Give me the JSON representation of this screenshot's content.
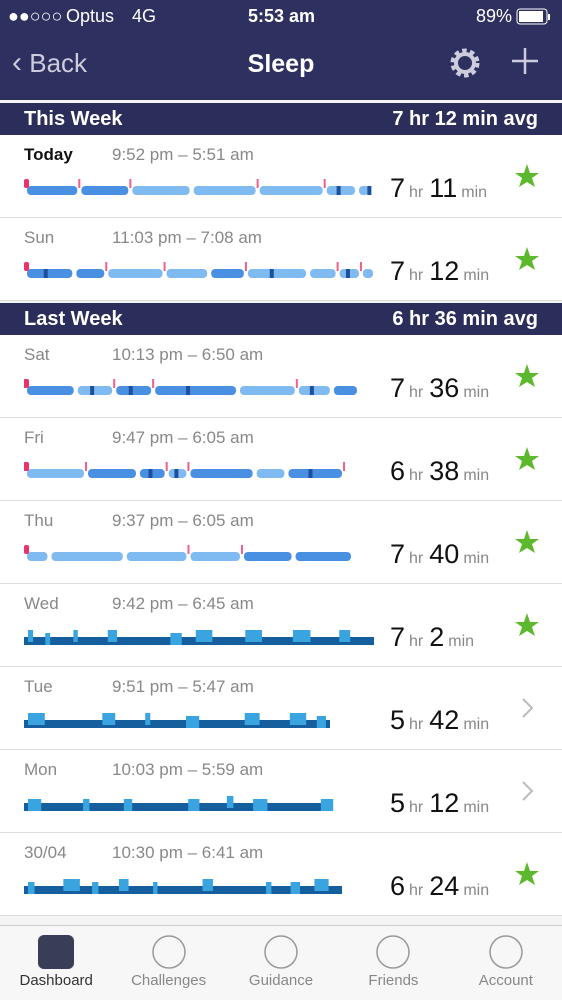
{
  "status_bar": {
    "carrier": "Optus",
    "network": "4G",
    "time": "5:53 am",
    "battery": "89%"
  },
  "nav": {
    "back": "Back",
    "title": "Sleep"
  },
  "units": {
    "hr": "hr",
    "min": "min"
  },
  "sections": [
    {
      "title": "This Week",
      "avg": "7 hr 12 min avg",
      "entries": [
        {
          "day": "Today",
          "time": "9:52 pm – 5:51 am",
          "hours": "7",
          "minutes": "11",
          "icon": "star"
        },
        {
          "day": "Sun",
          "time": "11:03 pm – 7:08 am",
          "hours": "7",
          "minutes": "12",
          "icon": "star"
        }
      ]
    },
    {
      "title": "Last Week",
      "avg": "6 hr 36 min avg",
      "entries": [
        {
          "day": "Sat",
          "time": "10:13 pm – 6:50 am",
          "hours": "7",
          "minutes": "36",
          "icon": "star"
        },
        {
          "day": "Fri",
          "time": "9:47 pm – 6:05 am",
          "hours": "6",
          "minutes": "38",
          "icon": "star"
        },
        {
          "day": "Thu",
          "time": "9:37 pm – 6:05 am",
          "hours": "7",
          "minutes": "40",
          "icon": "star"
        },
        {
          "day": "Wed",
          "time": "9:42 pm – 6:45 am",
          "hours": "7",
          "minutes": "2",
          "icon": "star"
        },
        {
          "day": "Tue",
          "time": "9:51 pm – 5:47 am",
          "hours": "5",
          "minutes": "42",
          "icon": "chevron"
        },
        {
          "day": "Mon",
          "time": "10:03 pm – 5:59 am",
          "hours": "5",
          "minutes": "12",
          "icon": "chevron"
        },
        {
          "day": "30/04",
          "time": "10:30 pm – 6:41 am",
          "hours": "6",
          "minutes": "24",
          "icon": "star"
        }
      ]
    }
  ],
  "tabs": [
    {
      "label": "Dashboard",
      "active": true
    },
    {
      "label": "Challenges",
      "active": false
    },
    {
      "label": "Guidance",
      "active": false
    },
    {
      "label": "Friends",
      "active": false
    },
    {
      "label": "Account",
      "active": false
    }
  ]
}
